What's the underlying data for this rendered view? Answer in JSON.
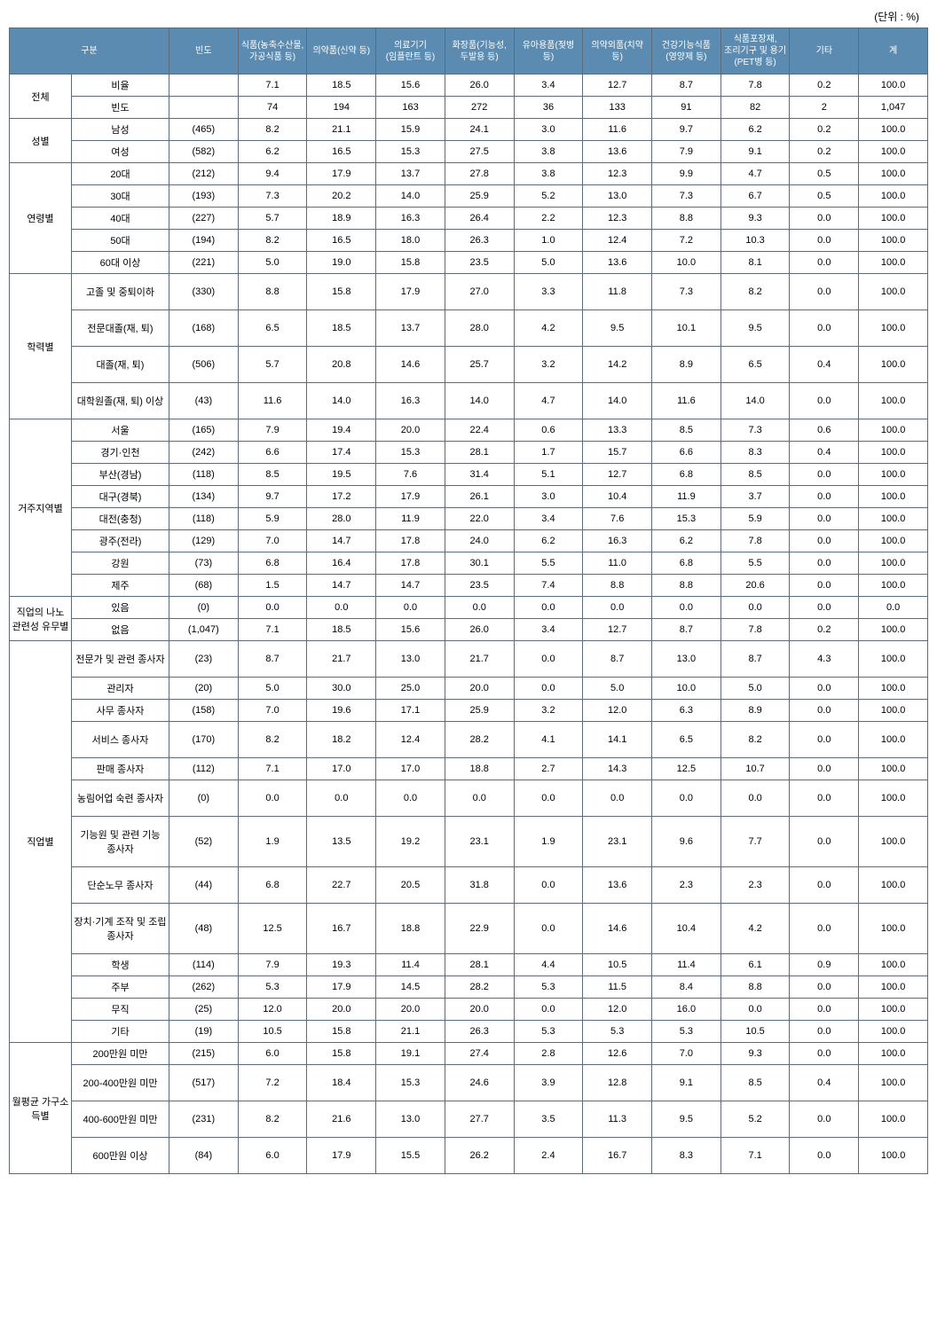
{
  "unit_label": "(단위 : %)",
  "headers": [
    "구분",
    "빈도",
    "식품(농축수산물,가공식품 등)",
    "의약품(신약 등)",
    "의료기기(임플란트 등)",
    "화장품(기능성,두발용 등)",
    "유아용품(젖병 등)",
    "의약외품(치약 등)",
    "건강기능식품(영양제 등)",
    "식품포장재, 조리기구 및 용기(PET병 등)",
    "기타",
    "계"
  ],
  "overall_label": "전체",
  "overall_rate_label": "비율",
  "overall_freq_label": "빈도",
  "overall_rate": [
    "7.1",
    "18.5",
    "15.6",
    "26.0",
    "3.4",
    "12.7",
    "8.7",
    "7.8",
    "0.2",
    "100.0"
  ],
  "overall_freq": [
    "74",
    "194",
    "163",
    "272",
    "36",
    "133",
    "91",
    "82",
    "2",
    "1,047"
  ],
  "groups": [
    {
      "name": "성별",
      "rows": [
        {
          "label": "남성",
          "freq": "(465)",
          "v": [
            "8.2",
            "21.1",
            "15.9",
            "24.1",
            "3.0",
            "11.6",
            "9.7",
            "6.2",
            "0.2",
            "100.0"
          ]
        },
        {
          "label": "여성",
          "freq": "(582)",
          "v": [
            "6.2",
            "16.5",
            "15.3",
            "27.5",
            "3.8",
            "13.6",
            "7.9",
            "9.1",
            "0.2",
            "100.0"
          ]
        }
      ]
    },
    {
      "name": "연령별",
      "rows": [
        {
          "label": "20대",
          "freq": "(212)",
          "v": [
            "9.4",
            "17.9",
            "13.7",
            "27.8",
            "3.8",
            "12.3",
            "9.9",
            "4.7",
            "0.5",
            "100.0"
          ]
        },
        {
          "label": "30대",
          "freq": "(193)",
          "v": [
            "7.3",
            "20.2",
            "14.0",
            "25.9",
            "5.2",
            "13.0",
            "7.3",
            "6.7",
            "0.5",
            "100.0"
          ]
        },
        {
          "label": "40대",
          "freq": "(227)",
          "v": [
            "5.7",
            "18.9",
            "16.3",
            "26.4",
            "2.2",
            "12.3",
            "8.8",
            "9.3",
            "0.0",
            "100.0"
          ]
        },
        {
          "label": "50대",
          "freq": "(194)",
          "v": [
            "8.2",
            "16.5",
            "18.0",
            "26.3",
            "1.0",
            "12.4",
            "7.2",
            "10.3",
            "0.0",
            "100.0"
          ]
        },
        {
          "label": "60대 이상",
          "freq": "(221)",
          "v": [
            "5.0",
            "19.0",
            "15.8",
            "23.5",
            "5.0",
            "13.6",
            "10.0",
            "8.1",
            "0.0",
            "100.0"
          ]
        }
      ]
    },
    {
      "name": "학력별",
      "rows": [
        {
          "label": "고졸 및 중퇴이하",
          "freq": "(330)",
          "v": [
            "8.8",
            "15.8",
            "17.9",
            "27.0",
            "3.3",
            "11.8",
            "7.3",
            "8.2",
            "0.0",
            "100.0"
          ],
          "tall": true
        },
        {
          "label": "전문대졸(재, 퇴)",
          "freq": "(168)",
          "v": [
            "6.5",
            "18.5",
            "13.7",
            "28.0",
            "4.2",
            "9.5",
            "10.1",
            "9.5",
            "0.0",
            "100.0"
          ],
          "tall": true
        },
        {
          "label": "대졸(재, 퇴)",
          "freq": "(506)",
          "v": [
            "5.7",
            "20.8",
            "14.6",
            "25.7",
            "3.2",
            "14.2",
            "8.9",
            "6.5",
            "0.4",
            "100.0"
          ],
          "tall": true
        },
        {
          "label": "대학원졸(재, 퇴) 이상",
          "freq": "(43)",
          "v": [
            "11.6",
            "14.0",
            "16.3",
            "14.0",
            "4.7",
            "14.0",
            "11.6",
            "14.0",
            "0.0",
            "100.0"
          ],
          "tall": true
        }
      ]
    },
    {
      "name": "거주지역별",
      "rows": [
        {
          "label": "서울",
          "freq": "(165)",
          "v": [
            "7.9",
            "19.4",
            "20.0",
            "22.4",
            "0.6",
            "13.3",
            "8.5",
            "7.3",
            "0.6",
            "100.0"
          ]
        },
        {
          "label": "경기·인천",
          "freq": "(242)",
          "v": [
            "6.6",
            "17.4",
            "15.3",
            "28.1",
            "1.7",
            "15.7",
            "6.6",
            "8.3",
            "0.4",
            "100.0"
          ]
        },
        {
          "label": "부산(경남)",
          "freq": "(118)",
          "v": [
            "8.5",
            "19.5",
            "7.6",
            "31.4",
            "5.1",
            "12.7",
            "6.8",
            "8.5",
            "0.0",
            "100.0"
          ]
        },
        {
          "label": "대구(경북)",
          "freq": "(134)",
          "v": [
            "9.7",
            "17.2",
            "17.9",
            "26.1",
            "3.0",
            "10.4",
            "11.9",
            "3.7",
            "0.0",
            "100.0"
          ]
        },
        {
          "label": "대전(충청)",
          "freq": "(118)",
          "v": [
            "5.9",
            "28.0",
            "11.9",
            "22.0",
            "3.4",
            "7.6",
            "15.3",
            "5.9",
            "0.0",
            "100.0"
          ]
        },
        {
          "label": "광주(전라)",
          "freq": "(129)",
          "v": [
            "7.0",
            "14.7",
            "17.8",
            "24.0",
            "6.2",
            "16.3",
            "6.2",
            "7.8",
            "0.0",
            "100.0"
          ]
        },
        {
          "label": "강원",
          "freq": "(73)",
          "v": [
            "6.8",
            "16.4",
            "17.8",
            "30.1",
            "5.5",
            "11.0",
            "6.8",
            "5.5",
            "0.0",
            "100.0"
          ]
        },
        {
          "label": "제주",
          "freq": "(68)",
          "v": [
            "1.5",
            "14.7",
            "14.7",
            "23.5",
            "7.4",
            "8.8",
            "8.8",
            "20.6",
            "0.0",
            "100.0"
          ]
        }
      ]
    },
    {
      "name": "직업의 나노 관련성 유무별",
      "rows": [
        {
          "label": "있음",
          "freq": "(0)",
          "v": [
            "0.0",
            "0.0",
            "0.0",
            "0.0",
            "0.0",
            "0.0",
            "0.0",
            "0.0",
            "0.0",
            "0.0"
          ]
        },
        {
          "label": "없음",
          "freq": "(1,047)",
          "v": [
            "7.1",
            "18.5",
            "15.6",
            "26.0",
            "3.4",
            "12.7",
            "8.7",
            "7.8",
            "0.2",
            "100.0"
          ]
        }
      ]
    },
    {
      "name": "직업별",
      "rows": [
        {
          "label": "전문가 및 관련 종사자",
          "freq": "(23)",
          "v": [
            "8.7",
            "21.7",
            "13.0",
            "21.7",
            "0.0",
            "8.7",
            "13.0",
            "8.7",
            "4.3",
            "100.0"
          ],
          "tall": true
        },
        {
          "label": "관리자",
          "freq": "(20)",
          "v": [
            "5.0",
            "30.0",
            "25.0",
            "20.0",
            "0.0",
            "5.0",
            "10.0",
            "5.0",
            "0.0",
            "100.0"
          ]
        },
        {
          "label": "사무 종사자",
          "freq": "(158)",
          "v": [
            "7.0",
            "19.6",
            "17.1",
            "25.9",
            "3.2",
            "12.0",
            "6.3",
            "8.9",
            "0.0",
            "100.0"
          ]
        },
        {
          "label": "서비스 종사자",
          "freq": "(170)",
          "v": [
            "8.2",
            "18.2",
            "12.4",
            "28.2",
            "4.1",
            "14.1",
            "6.5",
            "8.2",
            "0.0",
            "100.0"
          ],
          "tall": true
        },
        {
          "label": "판매 종사자",
          "freq": "(112)",
          "v": [
            "7.1",
            "17.0",
            "17.0",
            "18.8",
            "2.7",
            "14.3",
            "12.5",
            "10.7",
            "0.0",
            "100.0"
          ]
        },
        {
          "label": "농림어업 숙련 종사자",
          "freq": "(0)",
          "v": [
            "0.0",
            "0.0",
            "0.0",
            "0.0",
            "0.0",
            "0.0",
            "0.0",
            "0.0",
            "0.0",
            "100.0"
          ],
          "tall": true
        },
        {
          "label": "기능원 및 관련 기능 종사자",
          "freq": "(52)",
          "v": [
            "1.9",
            "13.5",
            "19.2",
            "23.1",
            "1.9",
            "23.1",
            "9.6",
            "7.7",
            "0.0",
            "100.0"
          ],
          "tall": true
        },
        {
          "label": "단순노무 종사자",
          "freq": "(44)",
          "v": [
            "6.8",
            "22.7",
            "20.5",
            "31.8",
            "0.0",
            "13.6",
            "2.3",
            "2.3",
            "0.0",
            "100.0"
          ],
          "tall": true
        },
        {
          "label": "장치·기계 조작 및 조립 종사자",
          "freq": "(48)",
          "v": [
            "12.5",
            "16.7",
            "18.8",
            "22.9",
            "0.0",
            "14.6",
            "10.4",
            "4.2",
            "0.0",
            "100.0"
          ],
          "tall": true
        },
        {
          "label": "학생",
          "freq": "(114)",
          "v": [
            "7.9",
            "19.3",
            "11.4",
            "28.1",
            "4.4",
            "10.5",
            "11.4",
            "6.1",
            "0.9",
            "100.0"
          ]
        },
        {
          "label": "주부",
          "freq": "(262)",
          "v": [
            "5.3",
            "17.9",
            "14.5",
            "28.2",
            "5.3",
            "11.5",
            "8.4",
            "8.8",
            "0.0",
            "100.0"
          ]
        },
        {
          "label": "무직",
          "freq": "(25)",
          "v": [
            "12.0",
            "20.0",
            "20.0",
            "20.0",
            "0.0",
            "12.0",
            "16.0",
            "0.0",
            "0.0",
            "100.0"
          ]
        },
        {
          "label": "기타",
          "freq": "(19)",
          "v": [
            "10.5",
            "15.8",
            "21.1",
            "26.3",
            "5.3",
            "5.3",
            "5.3",
            "10.5",
            "0.0",
            "100.0"
          ]
        }
      ]
    },
    {
      "name": "월평균 가구소득별",
      "rows": [
        {
          "label": "200만원 미만",
          "freq": "(215)",
          "v": [
            "6.0",
            "15.8",
            "19.1",
            "27.4",
            "2.8",
            "12.6",
            "7.0",
            "9.3",
            "0.0",
            "100.0"
          ]
        },
        {
          "label": "200-400만원 미만",
          "freq": "(517)",
          "v": [
            "7.2",
            "18.4",
            "15.3",
            "24.6",
            "3.9",
            "12.8",
            "9.1",
            "8.5",
            "0.4",
            "100.0"
          ],
          "tall": true
        },
        {
          "label": "400-600만원 미만",
          "freq": "(231)",
          "v": [
            "8.2",
            "21.6",
            "13.0",
            "27.7",
            "3.5",
            "11.3",
            "9.5",
            "5.2",
            "0.0",
            "100.0"
          ],
          "tall": true
        },
        {
          "label": "600만원 이상",
          "freq": "(84)",
          "v": [
            "6.0",
            "17.9",
            "15.5",
            "26.2",
            "2.4",
            "16.7",
            "8.3",
            "7.1",
            "0.0",
            "100.0"
          ],
          "tall": true
        }
      ]
    }
  ]
}
